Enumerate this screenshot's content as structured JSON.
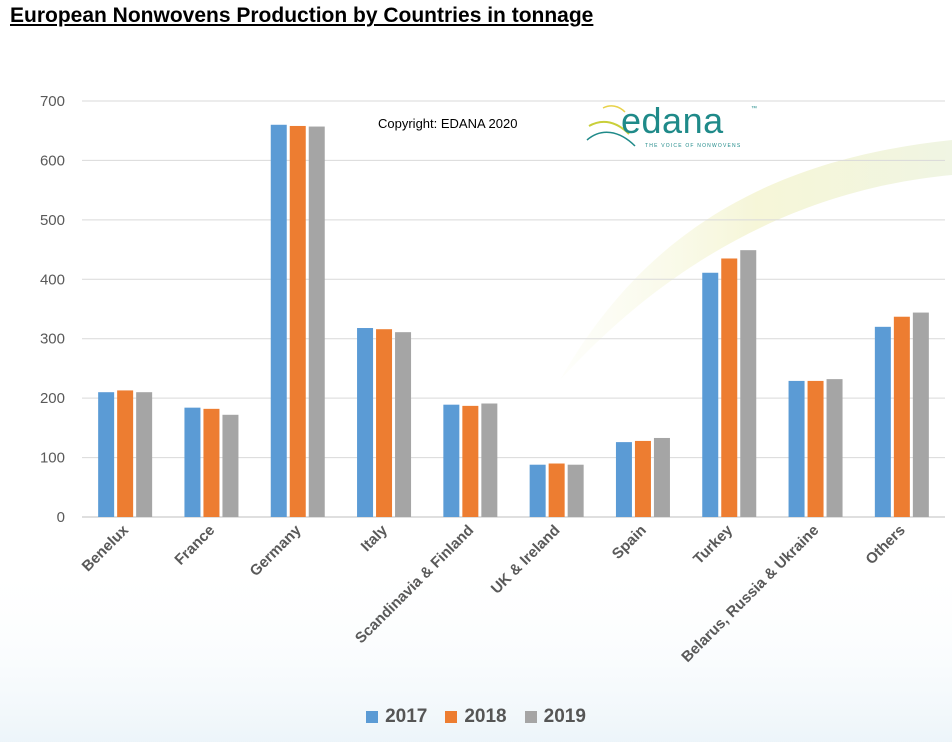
{
  "title": "European Nonwovens Production by Countries in tonnage",
  "copyright": "Copyright: EDANA 2020",
  "logo": {
    "word": "edana",
    "tm": "™",
    "tagline": "THE VOICE OF NONWOVENS"
  },
  "colors": {
    "s2017": "#5b9bd5",
    "s2018": "#ed7d31",
    "s2019": "#a5a5a5",
    "logo": "#1f8a89"
  },
  "chart_data": {
    "type": "bar",
    "categories": [
      "Benelux",
      "France",
      "Germany",
      "Italy",
      "Scandinavia & Finland",
      "UK & Ireland",
      "Spain",
      "Turkey",
      "Belarus, Russia & Ukraine",
      "Others"
    ],
    "series": [
      {
        "name": "2017",
        "values": [
          210,
          184,
          660,
          318,
          189,
          88,
          126,
          411,
          229,
          320
        ]
      },
      {
        "name": "2018",
        "values": [
          213,
          182,
          658,
          316,
          187,
          90,
          128,
          435,
          229,
          337
        ]
      },
      {
        "name": "2019",
        "values": [
          210,
          172,
          657,
          311,
          191,
          88,
          133,
          449,
          232,
          344
        ]
      }
    ],
    "ylim": [
      0,
      700
    ],
    "yticks": [
      0,
      100,
      200,
      300,
      400,
      500,
      600,
      700
    ],
    "grid": true,
    "legend": "bottom"
  }
}
